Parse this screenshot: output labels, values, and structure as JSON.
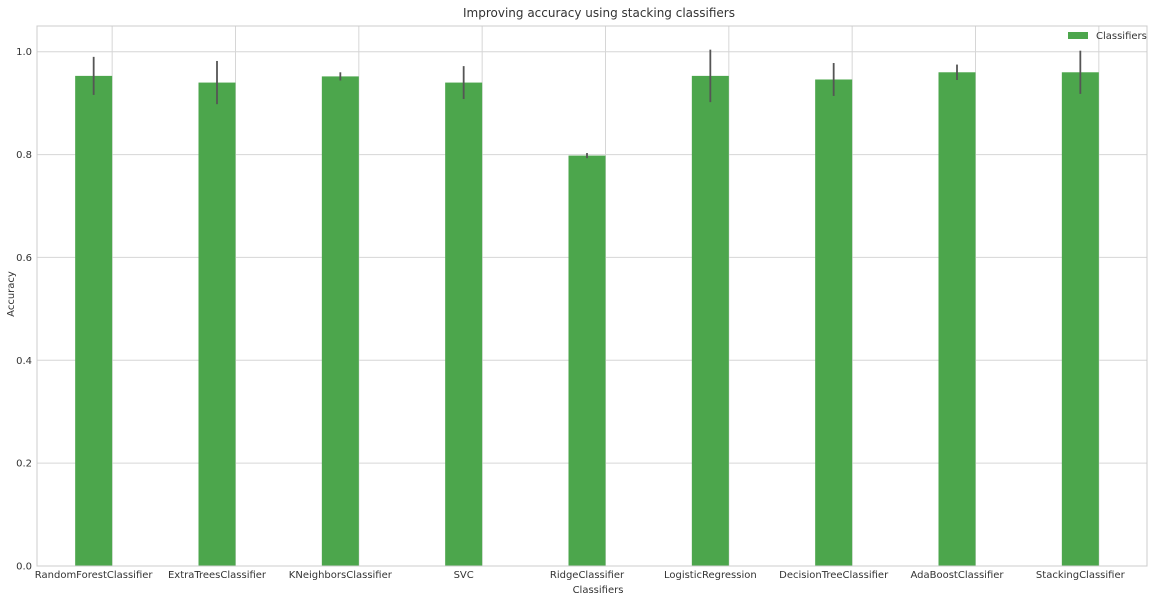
{
  "chart_data": {
    "type": "bar",
    "title": "Improving accuracy using stacking classifiers",
    "xlabel": "Classifiers",
    "ylabel": "Accuracy",
    "ylim": [
      0,
      1.05
    ],
    "yticks": [
      "0.0",
      "0.2",
      "0.4",
      "0.6",
      "0.8",
      "1.0"
    ],
    "grid": true,
    "legend_position": "top-right",
    "categories": [
      "RandomForestClassifier",
      "ExtraTreesClassifier",
      "KNeighborsClassifier",
      "SVC",
      "RidgeClassifier",
      "LogisticRegression",
      "DecisionTreeClassifier",
      "AdaBoostClassifier",
      "StackingClassifier"
    ],
    "series": [
      {
        "name": "Classifiers",
        "color": "#4ca64c",
        "values": [
          0.953,
          0.94,
          0.952,
          0.94,
          0.798,
          0.953,
          0.946,
          0.96,
          0.96
        ],
        "errors": [
          0.037,
          0.042,
          0.008,
          0.032,
          0.005,
          0.051,
          0.032,
          0.015,
          0.042
        ]
      }
    ]
  }
}
